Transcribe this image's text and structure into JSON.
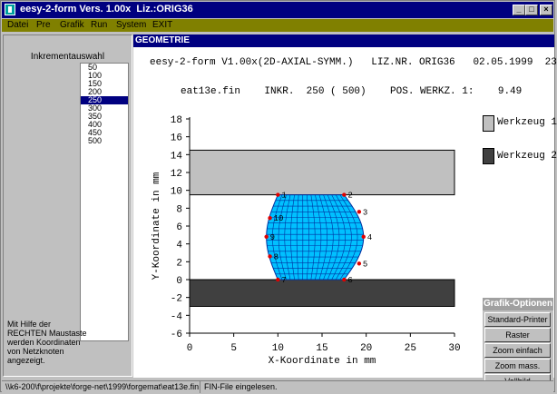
{
  "window": {
    "title": "eesy-2-form Vers. 1.00x  Liz.:ORIG36"
  },
  "menu": [
    "Datei",
    "Pre",
    "Grafik",
    "Run",
    "System",
    "EXIT"
  ],
  "left_panel": {
    "heading": "Inkrementauswahl",
    "increments": [
      "50",
      "100",
      "150",
      "200",
      "250",
      "300",
      "350",
      "400",
      "450",
      "500"
    ],
    "selected": "250",
    "hint_lines": [
      "Mit Hilfe der",
      "RECHTEN Maustaste",
      "werden Koordinaten",
      "von Netzknoten",
      "angezeigt."
    ]
  },
  "panel": {
    "title": "GEOMETRIE",
    "header_line": "eesy-2-form V1.00x(2D-AXIAL-SYMM.)   LIZ.NR. ORIG36   02.05.1999  23.05",
    "info_line": "eat13e.fin    INKR.  250 ( 500)    POS. WERKZ. 1:    9.49"
  },
  "legend": [
    {
      "label": "Werkzeug 1",
      "color": "#c0c0c0"
    },
    {
      "label": "Werkzeug 2",
      "color": "#404040"
    }
  ],
  "chart_data": {
    "type": "scatter",
    "xlabel": "X-Koordinate in mm",
    "ylabel": "Y-Koordinate in mm",
    "xlim": [
      0,
      30
    ],
    "ylim": [
      -6,
      18
    ],
    "xticks": [
      "0",
      "5",
      "10",
      "15",
      "20",
      "25",
      "30"
    ],
    "yticks": [
      "-6",
      "-4",
      "-2",
      "0",
      "2",
      "4",
      "6",
      "8",
      "10",
      "12",
      "14",
      "16",
      "18"
    ],
    "tools": [
      {
        "name": "Werkzeug 1",
        "x": [
          0,
          30
        ],
        "y": [
          9.5,
          14.5
        ],
        "color": "#c0c0c0"
      },
      {
        "name": "Werkzeug 2",
        "x": [
          0,
          30
        ],
        "y": [
          -3,
          0
        ],
        "color": "#404040"
      }
    ],
    "mesh": {
      "color": "#00c0ff",
      "line_color": "#0030a0"
    },
    "nodes": [
      {
        "label": "1",
        "x": 10.0,
        "y": 9.5
      },
      {
        "label": "2",
        "x": 17.5,
        "y": 9.5
      },
      {
        "label": "3",
        "x": 19.2,
        "y": 7.6
      },
      {
        "label": "4",
        "x": 19.7,
        "y": 4.8
      },
      {
        "label": "5",
        "x": 19.2,
        "y": 1.8
      },
      {
        "label": "6",
        "x": 17.5,
        "y": 0.0
      },
      {
        "label": "7",
        "x": 10.0,
        "y": 0.0
      },
      {
        "label": "8",
        "x": 9.1,
        "y": 2.6
      },
      {
        "label": "9",
        "x": 8.7,
        "y": 4.8
      },
      {
        "label": "10",
        "x": 9.1,
        "y": 6.9
      }
    ]
  },
  "options": {
    "title": "Grafik-Optionen",
    "buttons": [
      "Standard-Printer",
      "Raster",
      "Zoom einfach",
      "Zoom mass.",
      "Vollbild"
    ]
  },
  "status": {
    "path": "\\\\k6-200\\f\\projekte\\forge-net\\1999\\forgemat\\eat13e.fin",
    "message": "FIN-File eingelesen."
  }
}
